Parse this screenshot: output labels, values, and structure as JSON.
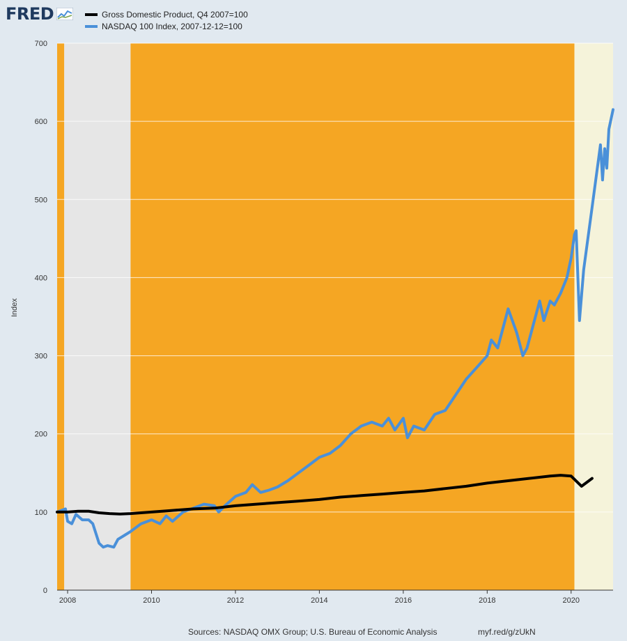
{
  "logo": {
    "text": "FRED"
  },
  "footer": {
    "sources": "Sources: NASDAQ OMX Group; U.S. Bureau of Economic Analysis",
    "link": "myf.red/g/zUkN"
  },
  "chart_data": {
    "type": "line",
    "ylabel": "Index",
    "xlim": [
      2007.75,
      2021.0
    ],
    "ylim": [
      0,
      700
    ],
    "yticks": [
      0,
      100,
      200,
      300,
      400,
      500,
      600,
      700
    ],
    "xticks": [
      2008,
      2010,
      2012,
      2014,
      2016,
      2018,
      2020
    ],
    "grid": "horizontal",
    "legend_position": "top-left",
    "shaded_regions": [
      {
        "x0": 2007.75,
        "x1": 2007.92,
        "color": "#f5a623"
      },
      {
        "x0": 2007.92,
        "x1": 2009.5,
        "color": "#e6e6e6"
      },
      {
        "x0": 2009.5,
        "x1": 2020.08,
        "color": "#f5a623"
      },
      {
        "x0": 2020.08,
        "x1": 2021.0,
        "color": "#f5f3da"
      }
    ],
    "series": [
      {
        "name": "Gross Domestic Product, Q4 2007=100",
        "color": "#000000",
        "x": [
          2007.75,
          2008.0,
          2008.25,
          2008.5,
          2008.75,
          2009.0,
          2009.25,
          2009.5,
          2009.75,
          2010.0,
          2010.25,
          2010.5,
          2010.75,
          2011.0,
          2011.5,
          2012.0,
          2012.5,
          2013.0,
          2013.5,
          2014.0,
          2014.5,
          2015.0,
          2015.5,
          2016.0,
          2016.5,
          2017.0,
          2017.5,
          2018.0,
          2018.5,
          2019.0,
          2019.5,
          2019.75,
          2020.0,
          2020.25,
          2020.5
        ],
        "values": [
          100,
          100,
          101,
          101,
          99,
          98,
          97.5,
          98,
          99,
          100,
          101,
          102,
          103,
          104,
          105,
          108,
          110,
          112,
          114,
          116,
          119,
          121,
          123,
          125,
          127,
          130,
          133,
          137,
          140,
          143,
          146,
          147,
          146,
          133,
          143
        ]
      },
      {
        "name": "NASDAQ 100 Index, 2007-12-12=100",
        "color": "#4a90d9",
        "x": [
          2007.75,
          2007.95,
          2008.0,
          2008.1,
          2008.2,
          2008.35,
          2008.5,
          2008.6,
          2008.75,
          2008.85,
          2008.95,
          2009.1,
          2009.2,
          2009.35,
          2009.5,
          2009.75,
          2010.0,
          2010.2,
          2010.35,
          2010.5,
          2010.75,
          2011.0,
          2011.25,
          2011.5,
          2011.6,
          2011.75,
          2012.0,
          2012.25,
          2012.4,
          2012.6,
          2012.8,
          2013.0,
          2013.25,
          2013.5,
          2013.75,
          2014.0,
          2014.25,
          2014.5,
          2014.75,
          2015.0,
          2015.25,
          2015.5,
          2015.65,
          2015.8,
          2016.0,
          2016.1,
          2016.25,
          2016.5,
          2016.75,
          2017.0,
          2017.25,
          2017.5,
          2017.75,
          2018.0,
          2018.1,
          2018.25,
          2018.4,
          2018.5,
          2018.7,
          2018.85,
          2018.95,
          2019.1,
          2019.25,
          2019.35,
          2019.5,
          2019.6,
          2019.75,
          2019.9,
          2020.0,
          2020.08,
          2020.12,
          2020.2,
          2020.3,
          2020.5,
          2020.6,
          2020.7,
          2020.75,
          2020.8,
          2020.85,
          2020.9,
          2021.0
        ],
        "values": [
          100,
          104,
          88,
          85,
          97,
          90,
          90,
          85,
          60,
          55,
          57,
          55,
          65,
          70,
          75,
          85,
          90,
          85,
          95,
          88,
          100,
          105,
          110,
          108,
          100,
          108,
          120,
          125,
          135,
          125,
          128,
          132,
          140,
          150,
          160,
          170,
          175,
          185,
          200,
          210,
          215,
          210,
          220,
          205,
          220,
          195,
          210,
          205,
          225,
          230,
          250,
          270,
          285,
          300,
          320,
          310,
          340,
          360,
          330,
          300,
          310,
          340,
          370,
          345,
          370,
          365,
          380,
          400,
          425,
          455,
          460,
          345,
          410,
          490,
          530,
          570,
          525,
          565,
          540,
          590,
          615
        ]
      }
    ]
  }
}
